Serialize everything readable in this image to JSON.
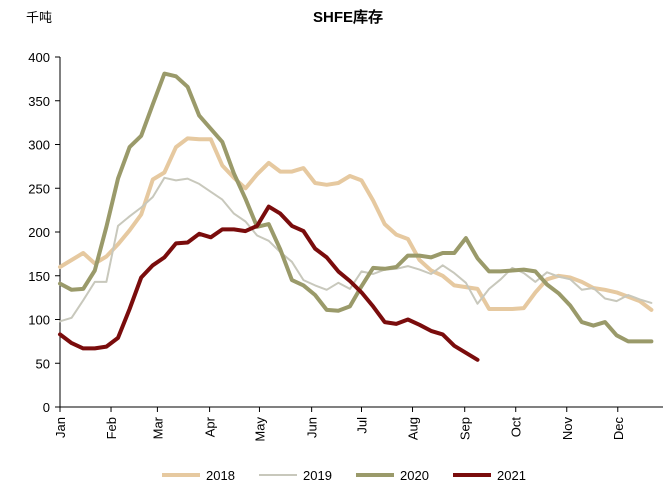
{
  "chart_data": {
    "type": "line",
    "title": "SHFE库存",
    "unit_label": "千吨",
    "xlabel": "",
    "ylabel": "千吨",
    "ylim": [
      0,
      400
    ],
    "yticks": [
      0,
      50,
      100,
      150,
      200,
      250,
      300,
      350,
      400
    ],
    "xlim": [
      0,
      52
    ],
    "month_ticks": [
      {
        "label": "Jan",
        "week": 0
      },
      {
        "label": "Feb",
        "week": 4.4
      },
      {
        "label": "Mar",
        "week": 8.4
      },
      {
        "label": "Apr",
        "week": 12.9
      },
      {
        "label": "May",
        "week": 17.2
      },
      {
        "label": "Jun",
        "week": 21.7
      },
      {
        "label": "Jul",
        "week": 26
      },
      {
        "label": "Aug",
        "week": 30.4
      },
      {
        "label": "Sep",
        "week": 34.9
      },
      {
        "label": "Oct",
        "week": 39.3
      },
      {
        "label": "Nov",
        "week": 43.7
      },
      {
        "label": "Dec",
        "week": 48.1
      }
    ],
    "grid": false,
    "legend_position": "bottom",
    "series": [
      {
        "name": "2018",
        "color": "#e6c9a0",
        "width": 4,
        "values": [
          160,
          168,
          176,
          164,
          172,
          186,
          202,
          220,
          260,
          268,
          297,
          307,
          306,
          306,
          276,
          262,
          250,
          266,
          279,
          269,
          269,
          273,
          256,
          254,
          256,
          264,
          259,
          236,
          209,
          197,
          192,
          168,
          156,
          150,
          139,
          137,
          135,
          112,
          112,
          112,
          113,
          131,
          146,
          150,
          148,
          143,
          136,
          134,
          131,
          126,
          121,
          111
        ]
      },
      {
        "name": "2019",
        "color": "#c8c8bc",
        "width": 2,
        "values": [
          98,
          102,
          122,
          143,
          143,
          207,
          218,
          228,
          240,
          262,
          259,
          261,
          255,
          246,
          237,
          221,
          212,
          196,
          190,
          177,
          166,
          145,
          139,
          134,
          142,
          135,
          155,
          152,
          157,
          158,
          161,
          157,
          152,
          162,
          153,
          142,
          118,
          135,
          146,
          159,
          153,
          143,
          154,
          149,
          146,
          134,
          136,
          124,
          121,
          128,
          123,
          119
        ]
      },
      {
        "name": "2020",
        "color": "#9a9a6a",
        "width": 4,
        "values": [
          141,
          134,
          135,
          156,
          206,
          261,
          297,
          310,
          346,
          381,
          378,
          366,
          333,
          318,
          303,
          267,
          238,
          206,
          209,
          180,
          145,
          139,
          128,
          111,
          110,
          115,
          138,
          159,
          158,
          160,
          173,
          173,
          171,
          176,
          176,
          193,
          170,
          155,
          155,
          156,
          157,
          155,
          140,
          130,
          116,
          97,
          93,
          97,
          82,
          75,
          75,
          75
        ]
      },
      {
        "name": "2021",
        "color": "#7a0c0c",
        "width": 4,
        "values": [
          83,
          73,
          67,
          67,
          69,
          79,
          112,
          148,
          162,
          171,
          187,
          188,
          198,
          194,
          203,
          203,
          201,
          207,
          229,
          221,
          207,
          201,
          181,
          171,
          155,
          144,
          131,
          115,
          97,
          95,
          100,
          94,
          87,
          83,
          70,
          62,
          54
        ]
      }
    ]
  }
}
